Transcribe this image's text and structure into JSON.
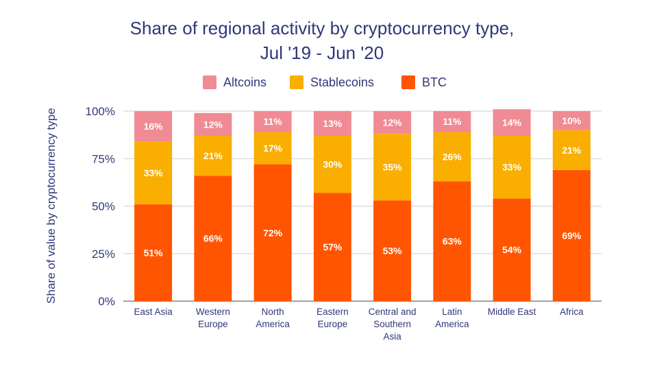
{
  "chart_data": {
    "type": "bar",
    "stacked": true,
    "title_lines": [
      "Share of regional activity by cryptocurrency type,",
      "Jul '19 - Jun '20"
    ],
    "ylabel": "Share of value by cryptocurrency type",
    "xlabel": "",
    "ylim": [
      0,
      100
    ],
    "yticks": [
      "0%",
      "25%",
      "50%",
      "75%",
      "100%"
    ],
    "ytick_values": [
      0,
      25,
      50,
      75,
      100
    ],
    "grid": true,
    "legend_position": "top",
    "categories": [
      [
        "East Asia"
      ],
      [
        "Western",
        "Europe"
      ],
      [
        "North",
        "America"
      ],
      [
        "Eastern",
        "Europe"
      ],
      [
        "Central and",
        "Southern",
        "Asia"
      ],
      [
        "Latin",
        "America"
      ],
      [
        "Middle East"
      ],
      [
        "Africa"
      ]
    ],
    "series": [
      {
        "name": "BTC",
        "color": "#ff5500",
        "values": [
          51,
          66,
          72,
          57,
          53,
          63,
          54,
          69
        ],
        "labels": [
          "51%",
          "66%",
          "72%",
          "57%",
          "53%",
          "63%",
          "54%",
          "69%"
        ]
      },
      {
        "name": "Stablecoins",
        "color": "#f9ae00",
        "values": [
          33,
          21,
          17,
          30,
          35,
          26,
          33,
          21
        ],
        "labels": [
          "33%",
          "21%",
          "17%",
          "30%",
          "35%",
          "26%",
          "33%",
          "21%"
        ]
      },
      {
        "name": "Altcoins",
        "color": "#f08a94",
        "values": [
          16,
          12,
          11,
          13,
          12,
          11,
          14,
          10
        ],
        "labels": [
          "16%",
          "12%",
          "11%",
          "13%",
          "12%",
          "11%",
          "14%",
          "10%"
        ]
      }
    ],
    "legend_order": [
      "Altcoins",
      "Stablecoins",
      "BTC"
    ]
  }
}
